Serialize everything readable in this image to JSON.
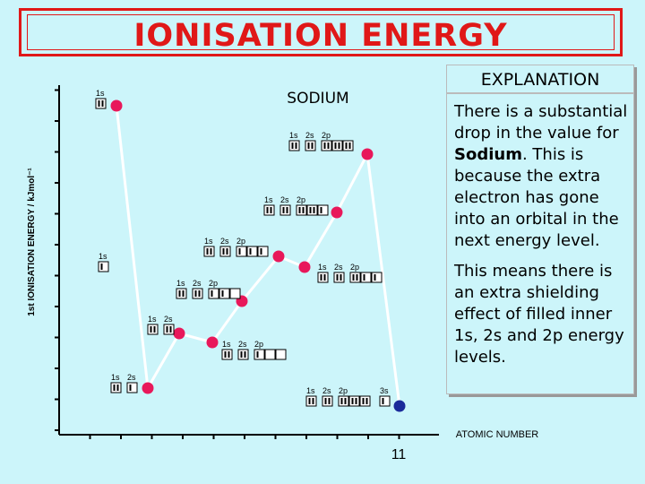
{
  "title": "IONISATION ENERGY",
  "explanation": {
    "heading": "EXPLANATION",
    "p1_start": "There is a substantial drop in the value for ",
    "p1_bold": "Sodium",
    "p1_end": ". This is because the extra electron has gone into an orbital in the next energy level.",
    "p2": "This means there is an extra shielding effect of filled inner 1s, 2s and 2p energy levels."
  },
  "chart_data": {
    "type": "line",
    "ylabel": "1st IONISATION ENERGY / kJmol⁻¹",
    "xlabel": "ATOMIC NUMBER",
    "x": [
      2,
      3,
      4,
      5,
      6,
      7,
      8,
      9,
      10,
      11
    ],
    "xtick_label": "11",
    "annotation": "SODIUM",
    "grid": false,
    "colors": {
      "point": "#e8185a",
      "sodium_point": "#1a2a9a",
      "line": "#ffffff",
      "axis": "#000000"
    },
    "points": [
      {
        "x": 2,
        "config": [
          [
            "1s",
            2
          ]
        ]
      },
      {
        "x": 3,
        "config": [
          [
            "1s",
            2
          ],
          [
            "2s",
            1
          ]
        ]
      },
      {
        "x": 4,
        "config": [
          [
            "1s",
            2
          ],
          [
            "2s",
            2
          ]
        ]
      },
      {
        "x": 5,
        "config": [
          [
            "1s",
            2
          ],
          [
            "2s",
            2
          ],
          [
            "2p",
            1
          ]
        ]
      },
      {
        "x": 6,
        "config": [
          [
            "1s",
            2
          ],
          [
            "2s",
            2
          ],
          [
            "2p",
            2
          ]
        ]
      },
      {
        "x": 7,
        "config": [
          [
            "1s",
            2
          ],
          [
            "2s",
            2
          ],
          [
            "2p",
            3
          ]
        ]
      },
      {
        "x": 8,
        "config": [
          [
            "1s",
            2
          ],
          [
            "2s",
            2
          ],
          [
            "2p",
            4
          ]
        ]
      },
      {
        "x": 9,
        "config": [
          [
            "1s",
            2
          ],
          [
            "2s",
            2
          ],
          [
            "2p",
            5
          ]
        ]
      },
      {
        "x": 10,
        "config": [
          [
            "1s",
            2
          ],
          [
            "2s",
            2
          ],
          [
            "2p",
            6
          ]
        ]
      },
      {
        "x": 11,
        "config": [
          [
            "1s",
            2
          ],
          [
            "2s",
            2
          ],
          [
            "2p",
            6
          ],
          [
            "3s",
            1
          ]
        ]
      }
    ],
    "hydrogen_label": {
      "config": [
        [
          "1s",
          1
        ]
      ]
    }
  }
}
